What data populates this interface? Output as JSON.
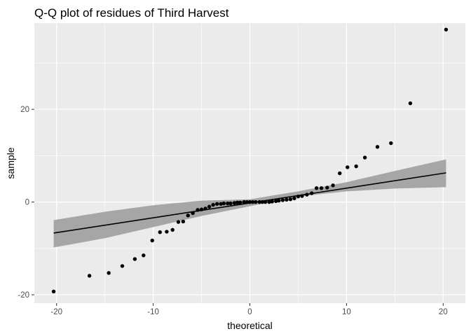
{
  "chart_data": {
    "type": "scatter",
    "title": "Q-Q plot of residues of Third Harvest",
    "xlabel": "theoretical",
    "ylabel": "sample",
    "xlim": [
      -22.3,
      22.3
    ],
    "ylim": [
      -21.8,
      38.6
    ],
    "x_ticks": [
      -20,
      -10,
      0,
      10,
      20
    ],
    "x_tick_labels": [
      "-20",
      "-10",
      "0",
      "10",
      "20"
    ],
    "y_ticks": [
      -20,
      0,
      20
    ],
    "y_tick_labels": [
      "-20",
      "0",
      "20"
    ],
    "grid": true,
    "legend": "none",
    "colors": {
      "panel": "#ebebeb",
      "grid": "#ffffff",
      "points": "#000000",
      "line": "#000000",
      "band": "#a6a6a6"
    },
    "points": [
      {
        "x": -20.3,
        "y": -19.3
      },
      {
        "x": -16.6,
        "y": -15.9
      },
      {
        "x": -14.6,
        "y": -15.3
      },
      {
        "x": -13.2,
        "y": -13.8
      },
      {
        "x": -11.9,
        "y": -12.3
      },
      {
        "x": -11.0,
        "y": -11.5
      },
      {
        "x": -10.1,
        "y": -8.3
      },
      {
        "x": -9.3,
        "y": -6.5
      },
      {
        "x": -8.6,
        "y": -6.4
      },
      {
        "x": -8.0,
        "y": -6.0
      },
      {
        "x": -7.4,
        "y": -4.3
      },
      {
        "x": -6.9,
        "y": -4.2
      },
      {
        "x": -6.4,
        "y": -2.9
      },
      {
        "x": -5.9,
        "y": -2.4
      },
      {
        "x": -5.4,
        "y": -1.7
      },
      {
        "x": -5.0,
        "y": -1.6
      },
      {
        "x": -4.6,
        "y": -1.4
      },
      {
        "x": -4.2,
        "y": -1.0
      },
      {
        "x": -3.8,
        "y": -0.6
      },
      {
        "x": -3.4,
        "y": -0.4
      },
      {
        "x": -3.0,
        "y": -0.4
      },
      {
        "x": -2.7,
        "y": -0.3
      },
      {
        "x": -2.3,
        "y": -0.3
      },
      {
        "x": -2.0,
        "y": -0.3
      },
      {
        "x": -1.6,
        "y": -0.2
      },
      {
        "x": -1.3,
        "y": -0.1
      },
      {
        "x": -1.0,
        "y": -0.1
      },
      {
        "x": -0.6,
        "y": 0.0
      },
      {
        "x": -0.3,
        "y": 0.0
      },
      {
        "x": 0.0,
        "y": 0.0
      },
      {
        "x": 0.3,
        "y": 0.0
      },
      {
        "x": 0.6,
        "y": 0.0
      },
      {
        "x": 1.0,
        "y": 0.0
      },
      {
        "x": 1.3,
        "y": 0.0
      },
      {
        "x": 1.6,
        "y": 0.0
      },
      {
        "x": 2.0,
        "y": 0.0
      },
      {
        "x": 2.3,
        "y": 0.1
      },
      {
        "x": 2.7,
        "y": 0.2
      },
      {
        "x": 3.0,
        "y": 0.3
      },
      {
        "x": 3.4,
        "y": 0.4
      },
      {
        "x": 3.8,
        "y": 0.5
      },
      {
        "x": 4.2,
        "y": 0.6
      },
      {
        "x": 4.6,
        "y": 0.8
      },
      {
        "x": 5.0,
        "y": 1.2
      },
      {
        "x": 5.4,
        "y": 1.3
      },
      {
        "x": 5.9,
        "y": 1.6
      },
      {
        "x": 6.4,
        "y": 1.9
      },
      {
        "x": 6.9,
        "y": 3.0
      },
      {
        "x": 7.4,
        "y": 3.0
      },
      {
        "x": 8.0,
        "y": 3.1
      },
      {
        "x": 8.6,
        "y": 3.6
      },
      {
        "x": 9.3,
        "y": 6.2
      },
      {
        "x": 10.1,
        "y": 7.5
      },
      {
        "x": 11.0,
        "y": 7.7
      },
      {
        "x": 11.9,
        "y": 9.6
      },
      {
        "x": 13.2,
        "y": 11.9
      },
      {
        "x": 14.6,
        "y": 12.7
      },
      {
        "x": 16.6,
        "y": 21.3
      },
      {
        "x": 20.3,
        "y": 37.2
      }
    ],
    "reference_line": {
      "intercept": -0.2,
      "slope": 0.32
    },
    "confidence_band": {
      "x": [
        -20.3,
        -15,
        -10,
        -5,
        0,
        5,
        10,
        15,
        20.3
      ],
      "lower": [
        -9.8,
        -7.8,
        -5.4,
        -3.0,
        -0.9,
        1.2,
        2.3,
        2.9,
        3.2
      ],
      "upper": [
        -3.9,
        -2.1,
        -0.7,
        0.3,
        0.6,
        2.3,
        4.3,
        6.7,
        9.2
      ]
    }
  }
}
